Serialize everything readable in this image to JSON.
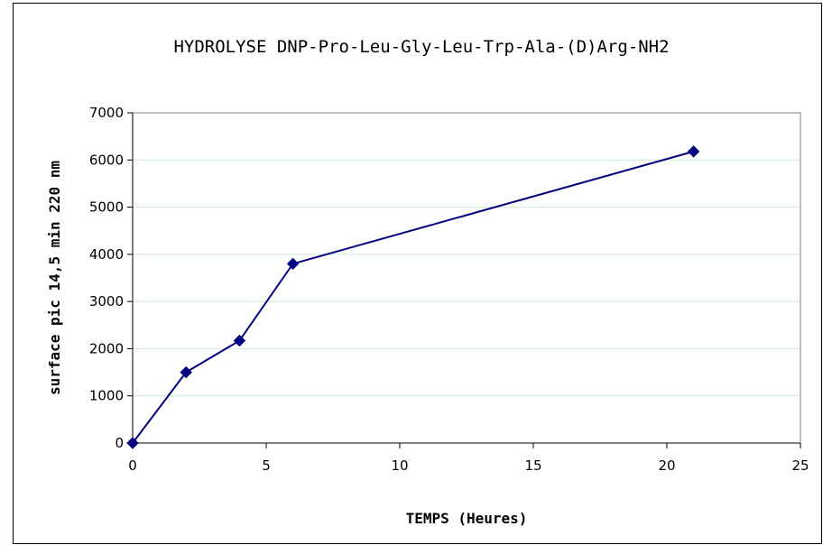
{
  "chart_data": {
    "type": "line",
    "title": "HYDROLYSE DNP-Pro-Leu-Gly-Leu-Trp-Ala-(D)Arg-NH2",
    "xlabel": "TEMPS (Heures)",
    "ylabel": "surface pic 14,5 min 220 nm",
    "xlim": [
      0,
      25
    ],
    "ylim": [
      0,
      7000
    ],
    "xticks": [
      0,
      5,
      10,
      15,
      20,
      25
    ],
    "yticks": [
      0,
      1000,
      2000,
      3000,
      4000,
      5000,
      6000,
      7000
    ],
    "grid": "horizontal",
    "series": [
      {
        "x": [
          0,
          2,
          4,
          6,
          21
        ],
        "y": [
          0,
          1500,
          2170,
          3800,
          6180
        ],
        "color": "#000080",
        "marker": "diamond"
      }
    ]
  }
}
